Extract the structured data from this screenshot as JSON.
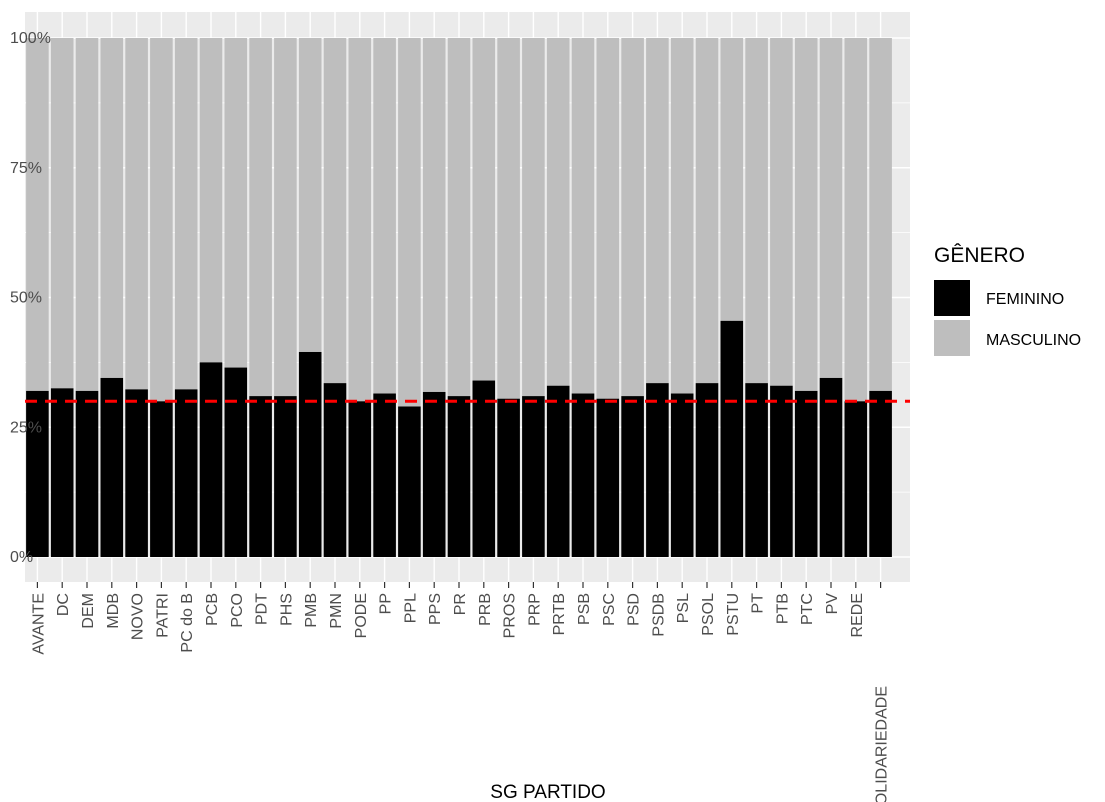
{
  "chart_data": {
    "type": "bar",
    "stacked": true,
    "normalized": true,
    "xlabel": "SG PARTIDO",
    "ylabel": "",
    "ylim": [
      0,
      1
    ],
    "y_ticks": [
      {
        "value": 0,
        "label": "0%"
      },
      {
        "value": 0.25,
        "label": "25%"
      },
      {
        "value": 0.5,
        "label": "50%"
      },
      {
        "value": 0.75,
        "label": "75%"
      },
      {
        "value": 1,
        "label": "100%"
      }
    ],
    "categories": [
      "AVANTE",
      "DC",
      "DEM",
      "MDB",
      "NOVO",
      "PATRI",
      "PC do B",
      "PCB",
      "PCO",
      "PDT",
      "PHS",
      "PMB",
      "PMN",
      "PODE",
      "PP",
      "PPL",
      "PPS",
      "PR",
      "PRB",
      "PROS",
      "PRP",
      "PRTB",
      "PSB",
      "PSC",
      "PSD",
      "PSDB",
      "PSL",
      "PSOL",
      "PSTU",
      "PT",
      "PTB",
      "PTC",
      "PV",
      "REDE",
      "SOLIDARIEDADE"
    ],
    "series": [
      {
        "name": "FEMININO",
        "color": "#000000",
        "values": [
          0.32,
          0.325,
          0.32,
          0.345,
          0.323,
          0.3,
          0.323,
          0.375,
          0.365,
          0.31,
          0.31,
          0.395,
          0.335,
          0.3,
          0.315,
          0.29,
          0.318,
          0.31,
          0.34,
          0.305,
          0.31,
          0.33,
          0.315,
          0.305,
          0.31,
          0.335,
          0.315,
          0.335,
          0.455,
          0.335,
          0.33,
          0.32,
          0.345,
          0.3,
          0.32
        ]
      },
      {
        "name": "MASCULINO",
        "color": "#bebebe",
        "values": [
          0.68,
          0.675,
          0.68,
          0.655,
          0.677,
          0.7,
          0.677,
          0.625,
          0.635,
          0.69,
          0.69,
          0.605,
          0.665,
          0.7,
          0.685,
          0.71,
          0.682,
          0.69,
          0.66,
          0.695,
          0.69,
          0.67,
          0.685,
          0.695,
          0.69,
          0.665,
          0.685,
          0.665,
          0.545,
          0.665,
          0.67,
          0.68,
          0.655,
          0.7,
          0.68
        ]
      }
    ],
    "reference_line": {
      "value": 0.3,
      "color": "#ff0000",
      "style": "dashed"
    },
    "legend": {
      "title": "GÊNERO",
      "placement": "right"
    },
    "grid": true,
    "panel_background": "#ebebeb"
  }
}
